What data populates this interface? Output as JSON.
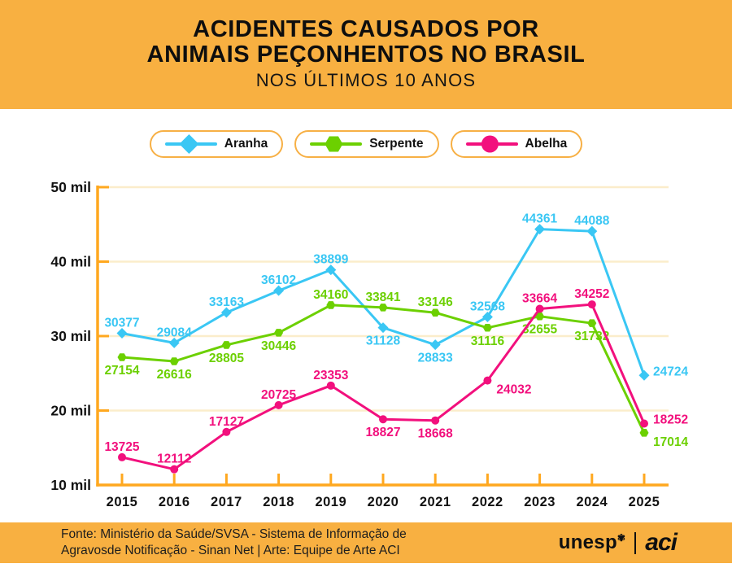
{
  "header": {
    "title_line1": "ACIDENTES CAUSADOS POR",
    "title_line2": "ANIMAIS PEÇONHENTOS NO BRASIL",
    "subtitle": "NOS ÚLTIMOS 10 ANOS"
  },
  "legend": [
    {
      "label": "Aranha",
      "color": "#3AC7F4",
      "marker": "diamond"
    },
    {
      "label": "Serpente",
      "color": "#6CD000",
      "marker": "hexagon"
    },
    {
      "label": "Abelha",
      "color": "#F2107D",
      "marker": "circle"
    }
  ],
  "chart_data": {
    "type": "line",
    "title": "ACIDENTES CAUSADOS POR ANIMAIS PEÇONHENTOS NO BRASIL",
    "subtitle": "NOS ÚLTIMOS 10 ANOS",
    "x": [
      "2015",
      "2016",
      "2017",
      "2018",
      "2019",
      "2020",
      "2021",
      "2022",
      "2023",
      "2024",
      "2025"
    ],
    "series": [
      {
        "name": "Aranha",
        "color": "#3AC7F4",
        "marker": "diamond",
        "values": [
          30377,
          29084,
          33163,
          36102,
          38899,
          31128,
          28833,
          32568,
          44361,
          44088,
          24724
        ],
        "label_pos": [
          "a",
          "a",
          "a",
          "a",
          "a",
          "b",
          "b",
          "a",
          "a",
          "a",
          "ru"
        ]
      },
      {
        "name": "Serpente",
        "color": "#6CD000",
        "marker": "hexagon",
        "values": [
          27154,
          26616,
          28805,
          30446,
          34160,
          33841,
          33146,
          31116,
          32655,
          31732,
          17014
        ],
        "label_pos": [
          "b",
          "b",
          "b",
          "b",
          "a",
          "a",
          "a",
          "b",
          "b",
          "b",
          "rd"
        ]
      },
      {
        "name": "Abelha",
        "color": "#F2107D",
        "marker": "circle",
        "values": [
          13725,
          12112,
          17127,
          20725,
          23353,
          18827,
          18668,
          24032,
          33664,
          34252,
          18252
        ],
        "label_pos": [
          "a",
          "a",
          "a",
          "a",
          "a",
          "b",
          "b",
          "rd",
          "a",
          "a",
          "ru"
        ]
      }
    ],
    "y_ticks": [
      {
        "value": 50000,
        "label": "50 mil"
      },
      {
        "value": 40000,
        "label": "40 mil"
      },
      {
        "value": 30000,
        "label": "30 mil"
      },
      {
        "value": 20000,
        "label": "20 mil"
      },
      {
        "value": 10000,
        "label": "10 mil"
      }
    ],
    "ylim": [
      10000,
      50000
    ],
    "grid": true,
    "legend_position": "top"
  },
  "colors": {
    "band": "#F8B041",
    "axis": "#FFA81F",
    "grid": "#FBEDCB",
    "text": "#121212",
    "legend_border": "#F7B045"
  },
  "footer": {
    "source_line1": "Fonte: Ministério da Saúde/SVSA - Sistema de Informação de",
    "source_line2": "Agravosde Notificação - Sinan Net | Arte: Equipe de Arte ACI",
    "logo_unesp": "unesp",
    "logo_unesp_symbol": "✾",
    "logo_aci": "aci"
  }
}
